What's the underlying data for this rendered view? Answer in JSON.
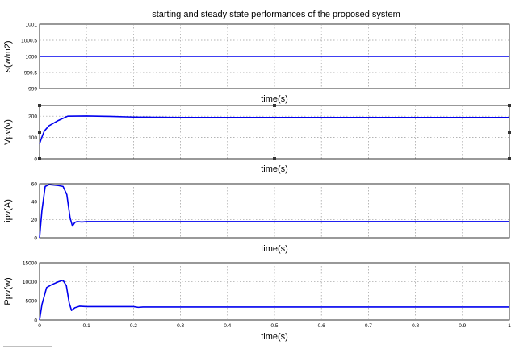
{
  "title": "starting and steady state performances of the proposed system",
  "chart_data": [
    {
      "type": "line",
      "ylabel": "s(w/m2)",
      "xlabel": "time(s)",
      "xlim": [
        0,
        1
      ],
      "ylim": [
        999,
        1001
      ],
      "yticks": [
        "1001",
        "1000.5",
        "1000",
        "999.5",
        "999"
      ],
      "xticks": [],
      "grid": true,
      "series": [
        {
          "x": [
            0,
            1
          ],
          "y": [
            1000,
            1000
          ]
        }
      ]
    },
    {
      "type": "line",
      "ylabel": "Vpv(v)",
      "xlabel": "time(s)",
      "xlim": [
        0,
        1
      ],
      "ylim": [
        0,
        250
      ],
      "yticks": [
        "200",
        "100",
        "0"
      ],
      "xticks": [],
      "grid": true,
      "series": [
        {
          "x": [
            0,
            0.003,
            0.01,
            0.02,
            0.04,
            0.06,
            0.1,
            0.15,
            0.2,
            0.3,
            1.0
          ],
          "y": [
            70,
            90,
            130,
            155,
            180,
            200,
            201,
            199,
            196,
            194,
            194
          ]
        }
      ]
    },
    {
      "type": "line",
      "ylabel": "ipv(A)",
      "xlabel": "time(s)",
      "xlim": [
        0,
        1
      ],
      "ylim": [
        0,
        60
      ],
      "yticks": [
        "60",
        "40",
        "20",
        "0"
      ],
      "xticks": [],
      "grid": true,
      "series": [
        {
          "x": [
            0,
            0.005,
            0.012,
            0.02,
            0.04,
            0.05,
            0.058,
            0.065,
            0.07,
            0.075,
            0.08,
            0.09,
            0.1,
            1.0
          ],
          "y": [
            0,
            30,
            57,
            59,
            58,
            57,
            48,
            22,
            13,
            17,
            18,
            17.5,
            18,
            18
          ]
        }
      ]
    },
    {
      "type": "line",
      "ylabel": "Ppv(w)",
      "xlabel": "time(s)",
      "xlim": [
        0,
        1
      ],
      "ylim": [
        0,
        15000
      ],
      "yticks": [
        "15000",
        "10000",
        "5000",
        "0"
      ],
      "xticks": [
        "0",
        "0.1",
        "0.2",
        "0.3",
        "0.4",
        "0.5",
        "0.6",
        "0.7",
        "0.8",
        "0.9",
        "1"
      ],
      "grid": true,
      "series": [
        {
          "x": [
            0,
            0.005,
            0.015,
            0.025,
            0.04,
            0.05,
            0.057,
            0.063,
            0.068,
            0.075,
            0.085,
            0.1,
            0.2,
            0.21,
            0.22,
            0.3,
            1.0
          ],
          "y": [
            0,
            4000,
            8500,
            9200,
            10000,
            10400,
            9000,
            4500,
            2500,
            3200,
            3600,
            3500,
            3500,
            3300,
            3400,
            3400,
            3400
          ]
        }
      ]
    }
  ]
}
